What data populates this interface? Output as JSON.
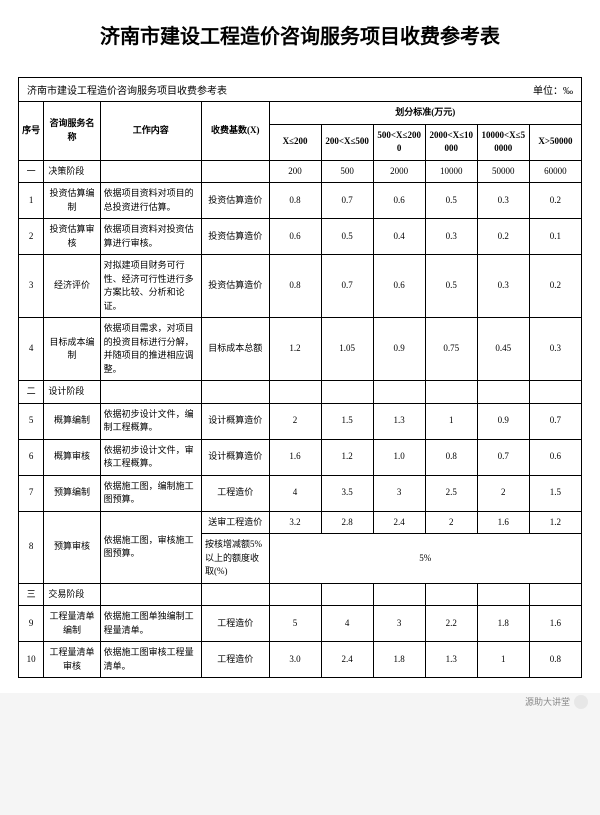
{
  "title": "济南市建设工程造价咨询服务项目收费参考表",
  "subtitle_left": "济南市建设工程造价咨询服务项目收费参考表",
  "unit_label": "单位：‰",
  "header": {
    "idx": "序号",
    "name": "咨询服务名称",
    "work": "工作内容",
    "base": "收费基数(X)",
    "group": "划分标准(万元)",
    "ranges": [
      "X≤200",
      "200<X≤500",
      "500<X≤2000",
      "2000<X≤10000",
      "10000<X≤50000",
      "X>50000"
    ]
  },
  "sections": [
    {
      "idx": "一",
      "label": "决策阶段",
      "head_values": [
        "200",
        "500",
        "2000",
        "10000",
        "50000",
        "60000"
      ],
      "rows": [
        {
          "n": "1",
          "name": "投资估算编制",
          "work": "依据项目资料对项目的总投资进行估算。",
          "base": "投资估算造价",
          "v": [
            "0.8",
            "0.7",
            "0.6",
            "0.5",
            "0.3",
            "0.2"
          ]
        },
        {
          "n": "2",
          "name": "投资估算审核",
          "work": "依据项目资料对投资估算进行审核。",
          "base": "投资估算造价",
          "v": [
            "0.6",
            "0.5",
            "0.4",
            "0.3",
            "0.2",
            "0.1"
          ]
        },
        {
          "n": "3",
          "name": "经济评价",
          "work": "对拟建项目财务可行性、经济可行性进行多方案比较、分析和论证。",
          "base": "投资估算造价",
          "v": [
            "0.8",
            "0.7",
            "0.6",
            "0.5",
            "0.3",
            "0.2"
          ]
        },
        {
          "n": "4",
          "name": "目标成本编制",
          "work": "依据项目需求，对项目的投资目标进行分解，并随项目的推进相应调整。",
          "base": "目标成本总额",
          "v": [
            "1.2",
            "1.05",
            "0.9",
            "0.75",
            "0.45",
            "0.3"
          ]
        }
      ]
    },
    {
      "idx": "二",
      "label": "设计阶段",
      "rows": [
        {
          "n": "5",
          "name": "概算编制",
          "work": "依据初步设计文件，编制工程概算。",
          "base": "设计概算造价",
          "v": [
            "2",
            "1.5",
            "1.3",
            "1",
            "0.9",
            "0.7"
          ]
        },
        {
          "n": "6",
          "name": "概算审核",
          "work": "依据初步设计文件，审核工程概算。",
          "base": "设计概算造价",
          "v": [
            "1.6",
            "1.2",
            "1.0",
            "0.8",
            "0.7",
            "0.6"
          ]
        },
        {
          "n": "7",
          "name": "预算编制",
          "work": "依据施工图，编制施工图预算。",
          "base": "工程造价",
          "v": [
            "4",
            "3.5",
            "3",
            "2.5",
            "2",
            "1.5"
          ]
        },
        {
          "n": "8",
          "name": "预算审核",
          "work": "依据施工图，审核施工图预算。",
          "subrows": [
            {
              "base": "送审工程造价",
              "v": [
                "3.2",
                "2.8",
                "2.4",
                "2",
                "1.6",
                "1.2"
              ]
            },
            {
              "base": "按核增减额5%以上的额度收取(%)",
              "merged": "5%"
            }
          ]
        }
      ]
    },
    {
      "idx": "三",
      "label": "交易阶段",
      "rows": [
        {
          "n": "9",
          "name": "工程量清单编制",
          "work": "依据施工图单独编制工程量清单。",
          "base": "工程造价",
          "v": [
            "5",
            "4",
            "3",
            "2.2",
            "1.8",
            "1.6"
          ]
        },
        {
          "n": "10",
          "name": "工程量清单审核",
          "work": "依据施工图审核工程量清单。",
          "base": "工程造价",
          "v": [
            "3.0",
            "2.4",
            "1.8",
            "1.3",
            "1",
            "0.8"
          ]
        }
      ]
    }
  ],
  "footer_text": "源助大讲堂"
}
